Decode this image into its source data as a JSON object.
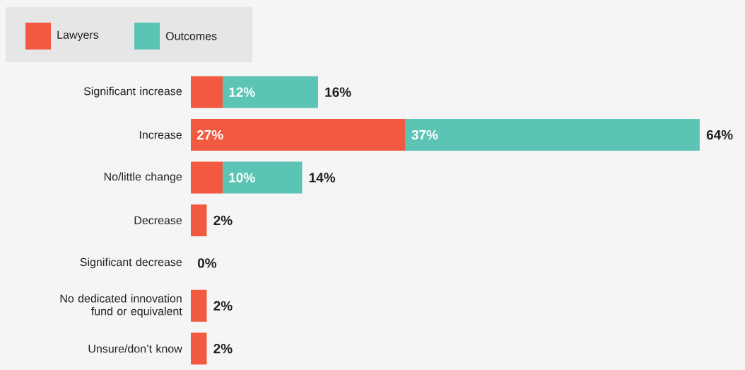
{
  "chart_data": {
    "type": "bar",
    "orientation": "horizontal",
    "stacked": true,
    "legend": "top left",
    "categories": [
      "Significant increase",
      "Increase",
      "No/little change",
      "Decrease",
      "Significant decrease",
      "No dedicated innovation fund or equivalent",
      "Unsure/don’t know"
    ],
    "series": [
      {
        "name": "Lawyers",
        "color": "#f15a40",
        "values": [
          4,
          27,
          4,
          2,
          0,
          2,
          2
        ],
        "value_labels": [
          null,
          "27%",
          null,
          null,
          null,
          null,
          null
        ]
      },
      {
        "name": "Outcomes",
        "color": "#5bc4b5",
        "values": [
          12,
          37,
          10,
          null,
          null,
          null,
          null
        ],
        "value_labels": [
          "12%",
          "37%",
          "10%",
          null,
          null,
          null,
          null
        ]
      }
    ],
    "totals": [
      "16%",
      "64%",
      "14%",
      "2%",
      "0%",
      "2%",
      "2%"
    ]
  }
}
